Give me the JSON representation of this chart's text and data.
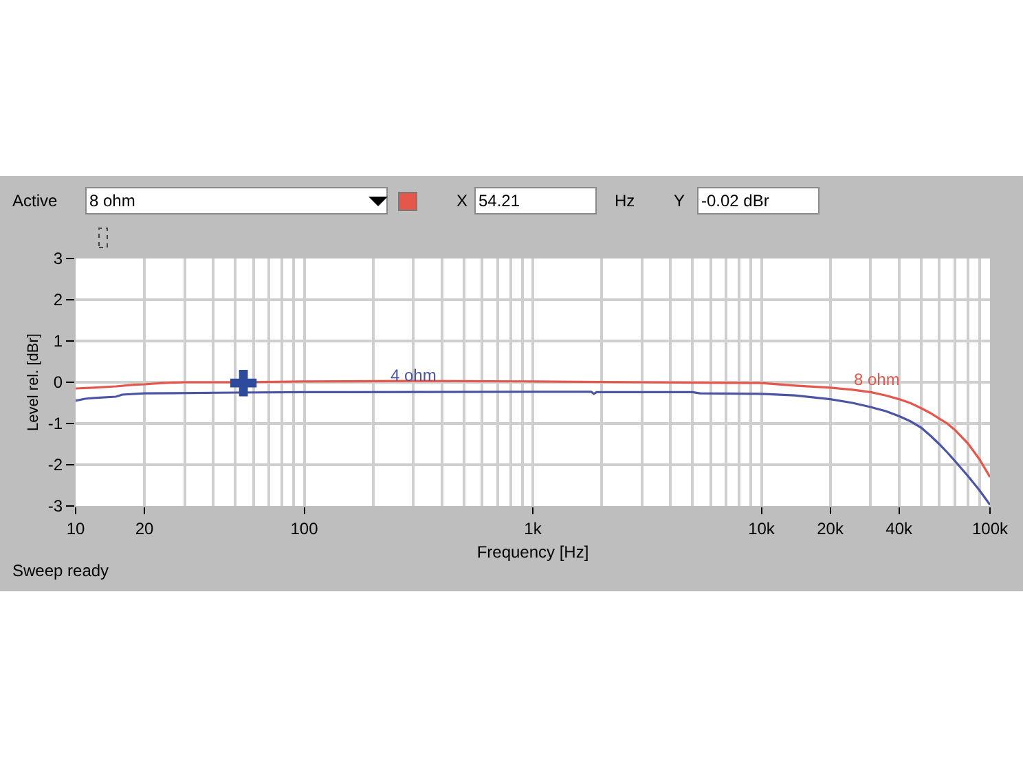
{
  "chart_data": {
    "type": "line",
    "xlabel": "Frequency [Hz]",
    "ylabel": "Level rel. [dBr]",
    "series": [
      {
        "name": "8 ohm",
        "color": "#e4574c",
        "x": [
          10,
          12,
          15,
          18,
          20,
          24,
          30,
          50,
          100,
          300,
          1000,
          3000,
          10000,
          14000,
          20000,
          25000,
          30000,
          35000,
          40000,
          45000,
          50000,
          55000,
          60000,
          65000,
          70000,
          80000,
          90000,
          100000
        ],
        "values": [
          -0.15,
          -0.13,
          -0.1,
          -0.06,
          -0.05,
          -0.02,
          0,
          0,
          0.02,
          0.03,
          0.02,
          0,
          -0.02,
          -0.08,
          -0.13,
          -0.18,
          -0.24,
          -0.32,
          -0.41,
          -0.51,
          -0.63,
          -0.75,
          -0.88,
          -1.0,
          -1.15,
          -1.48,
          -1.87,
          -2.3
        ]
      },
      {
        "name": "4 ohm",
        "color": "#4b55a3",
        "x": [
          10,
          11,
          12,
          15,
          16,
          20,
          50,
          100,
          1000,
          1800,
          1850,
          1900,
          5000,
          5400,
          10000,
          14000,
          20000,
          25000,
          30000,
          35000,
          40000,
          45000,
          50000,
          55000,
          60000,
          65000,
          70000,
          80000,
          90000,
          100000
        ],
        "values": [
          -0.45,
          -0.4,
          -0.38,
          -0.35,
          -0.3,
          -0.27,
          -0.25,
          -0.24,
          -0.23,
          -0.23,
          -0.28,
          -0.24,
          -0.24,
          -0.27,
          -0.28,
          -0.32,
          -0.41,
          -0.5,
          -0.6,
          -0.7,
          -0.82,
          -0.95,
          -1.1,
          -1.3,
          -1.5,
          -1.7,
          -1.9,
          -2.27,
          -2.62,
          -2.97
        ]
      },
      {
        "type": "scatter",
        "marker": "cross",
        "color": "#2d4a9c",
        "x": [
          54.21
        ],
        "values": [
          -0.02
        ]
      }
    ],
    "log": "x",
    "xlim": [
      10,
      100000
    ],
    "ylim": [
      -3,
      3
    ],
    "xticks": [
      10,
      20,
      {
        "value": 30,
        "label": null
      },
      {
        "value": 40,
        "label": null
      },
      {
        "value": 50,
        "label": null
      },
      {
        "value": 60,
        "label": null
      },
      {
        "value": 70,
        "label": null
      },
      {
        "value": 80,
        "label": null
      },
      {
        "value": 90,
        "label": null
      },
      100,
      {
        "value": 200,
        "label": null
      },
      {
        "value": 300,
        "label": null
      },
      {
        "value": 400,
        "label": null
      },
      {
        "value": 500,
        "label": null
      },
      {
        "value": 600,
        "label": null
      },
      {
        "value": 700,
        "label": null
      },
      {
        "value": 800,
        "label": null
      },
      {
        "value": 900,
        "label": null
      },
      {
        "value": 1000,
        "label": "1k"
      },
      {
        "value": 2000,
        "label": null
      },
      {
        "value": 3000,
        "label": null
      },
      {
        "value": 4000,
        "label": null
      },
      {
        "value": 5000,
        "label": null
      },
      {
        "value": 6000,
        "label": null
      },
      {
        "value": 7000,
        "label": null
      },
      {
        "value": 8000,
        "label": null
      },
      {
        "value": 9000,
        "label": null
      },
      {
        "value": 10000,
        "label": "10k"
      },
      {
        "value": 20000,
        "label": "20k"
      },
      {
        "value": 30000,
        "label": null
      },
      {
        "value": 40000,
        "label": "40k"
      },
      {
        "value": 50000,
        "label": null
      },
      {
        "value": 60000,
        "label": null
      },
      {
        "value": 70000,
        "label": null
      },
      {
        "value": 80000,
        "label": null
      },
      {
        "value": 90000,
        "label": null
      },
      {
        "value": 100000,
        "label": "100k"
      }
    ],
    "yticks": [
      -3,
      -2,
      -1,
      0,
      1,
      2,
      3
    ],
    "grid": true,
    "annotations": [
      "Active",
      "8 ohm",
      "X",
      "54.21",
      "Hz",
      "Y",
      "-0.02 dBr",
      "Sweep ready"
    ]
  }
}
